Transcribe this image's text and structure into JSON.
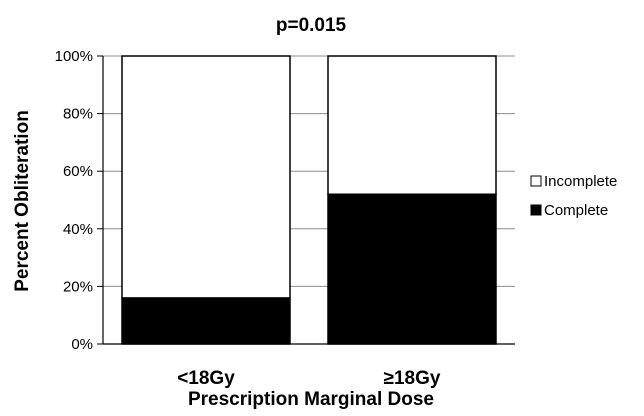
{
  "chart_data": {
    "type": "bar",
    "stacked": true,
    "title": "p=0.015",
    "xlabel": "Prescription Marginal Dose",
    "ylabel": "Percent Obliteration",
    "categories": [
      "<18Gy",
      "≥18Gy"
    ],
    "series": [
      {
        "name": "Complete",
        "values": [
          16,
          52
        ],
        "color": "#000000"
      },
      {
        "name": "Incomplete",
        "values": [
          84,
          48
        ],
        "color": "#ffffff"
      }
    ],
    "ylim": [
      0,
      100
    ],
    "yticks": [
      "0%",
      "20%",
      "40%",
      "60%",
      "80%",
      "100%"
    ],
    "ytick_values": [
      0,
      20,
      40,
      60,
      80,
      100
    ],
    "legend_order": [
      "Incomplete",
      "Complete"
    ],
    "legend_position": "right",
    "grid": false
  }
}
